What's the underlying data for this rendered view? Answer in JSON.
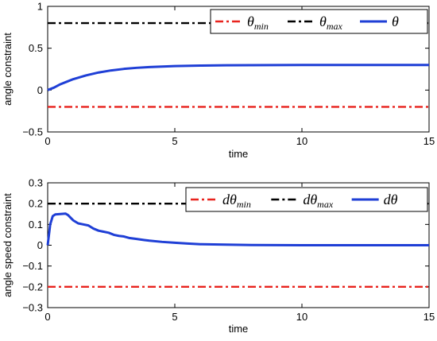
{
  "chart_data": [
    {
      "type": "line",
      "xlabel": "time",
      "ylabel": "angle constraint",
      "xlim": [
        0,
        15
      ],
      "ylim": [
        -0.5,
        1
      ],
      "xticks": [
        "0",
        "5",
        "10",
        "15"
      ],
      "yticks": [
        "1",
        "0.5",
        "0",
        "−0.5"
      ],
      "legend_position": "top-right",
      "series": [
        {
          "name": "min",
          "symbol": "θ",
          "sub": "min",
          "color": "#e8231e",
          "style": "dashdot",
          "x": [
            0,
            15
          ],
          "y": [
            -0.2,
            -0.2
          ]
        },
        {
          "name": "max",
          "symbol": "θ",
          "sub": "max",
          "color": "#000000",
          "style": "dashdot",
          "x": [
            0,
            15
          ],
          "y": [
            0.8,
            0.8
          ]
        },
        {
          "name": "",
          "symbol": "θ",
          "sub": "",
          "color": "#1f3fd6",
          "style": "solid",
          "x": [
            0,
            0.25,
            0.5,
            0.75,
            1,
            1.5,
            2,
            2.5,
            3,
            3.5,
            4,
            5,
            6,
            7,
            8,
            10,
            12,
            15
          ],
          "y": [
            0,
            0.03,
            0.07,
            0.1,
            0.13,
            0.175,
            0.21,
            0.235,
            0.253,
            0.266,
            0.275,
            0.287,
            0.293,
            0.296,
            0.298,
            0.3,
            0.3,
            0.3
          ]
        }
      ]
    },
    {
      "type": "line",
      "xlabel": "time",
      "ylabel": "angle speed constraint",
      "xlim": [
        0,
        15
      ],
      "ylim": [
        -0.3,
        0.3
      ],
      "xticks": [
        "0",
        "5",
        "10",
        "15"
      ],
      "yticks": [
        "0.3",
        "0.2",
        "0.1",
        "0",
        "−0.1",
        "−0.2",
        "−0.3"
      ],
      "legend_position": "top-right",
      "series": [
        {
          "name": "min",
          "symbol": "dθ",
          "sub": "min",
          "color": "#e8231e",
          "style": "dashdot",
          "x": [
            0,
            15
          ],
          "y": [
            -0.2,
            -0.2
          ]
        },
        {
          "name": "max",
          "symbol": "dθ",
          "sub": "max",
          "color": "#000000",
          "style": "dashdot",
          "x": [
            0,
            15
          ],
          "y": [
            0.2,
            0.2
          ]
        },
        {
          "name": "",
          "symbol": "dθ",
          "sub": "",
          "color": "#1f3fd6",
          "style": "solid",
          "x": [
            0,
            0.1,
            0.2,
            0.3,
            0.5,
            0.7,
            0.8,
            1.0,
            1.2,
            1.4,
            1.6,
            1.8,
            2.0,
            2.2,
            2.4,
            2.6,
            2.8,
            3.0,
            3.2,
            3.5,
            3.8,
            4.0,
            4.5,
            5.0,
            5.5,
            6,
            7,
            8,
            10,
            12,
            15
          ],
          "y": [
            0,
            0.1,
            0.14,
            0.148,
            0.15,
            0.152,
            0.145,
            0.12,
            0.105,
            0.1,
            0.095,
            0.08,
            0.07,
            0.065,
            0.06,
            0.05,
            0.045,
            0.042,
            0.035,
            0.03,
            0.025,
            0.022,
            0.016,
            0.012,
            0.008,
            0.005,
            0.003,
            0.001,
            0,
            0,
            0
          ]
        }
      ]
    }
  ]
}
